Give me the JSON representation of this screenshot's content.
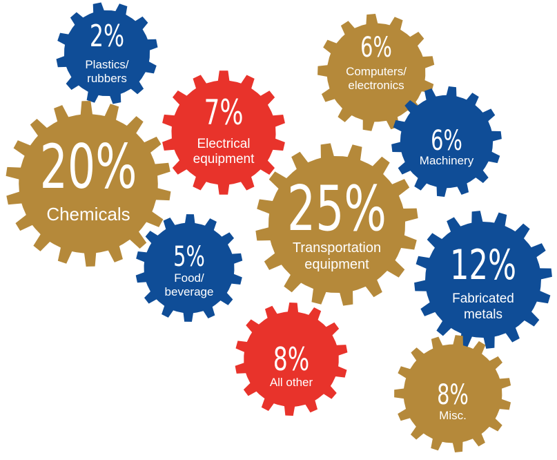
{
  "colors": {
    "gold": "#b5893a",
    "blue": "#0f4d97",
    "red": "#e8332b"
  },
  "chart_data": {
    "type": "pie",
    "title": "",
    "unit": "%",
    "categories": [
      {
        "percent_label": "2%",
        "value": 2,
        "label_lines": [
          "Plastics/",
          "rubbers"
        ],
        "color": "blue"
      },
      {
        "percent_label": "6%",
        "value": 6,
        "label_lines": [
          "Computers/",
          "electronics"
        ],
        "color": "gold"
      },
      {
        "percent_label": "7%",
        "value": 7,
        "label_lines": [
          "Electrical",
          "equipment"
        ],
        "color": "red"
      },
      {
        "percent_label": "6%",
        "value": 6,
        "label_lines": [
          "Machinery"
        ],
        "color": "blue"
      },
      {
        "percent_label": "20%",
        "value": 20,
        "label_lines": [
          "Chemicals"
        ],
        "color": "gold"
      },
      {
        "percent_label": "25%",
        "value": 25,
        "label_lines": [
          "Transportation",
          "equipment"
        ],
        "color": "gold"
      },
      {
        "percent_label": "5%",
        "value": 5,
        "label_lines": [
          "Food/",
          "beverage"
        ],
        "color": "blue"
      },
      {
        "percent_label": "12%",
        "value": 12,
        "label_lines": [
          "Fabricated",
          "metals"
        ],
        "color": "blue"
      },
      {
        "percent_label": "8%",
        "value": 8,
        "label_lines": [
          "All other"
        ],
        "color": "red"
      },
      {
        "percent_label": "8%",
        "value": 8,
        "label_lines": [
          "Misc."
        ],
        "color": "gold"
      }
    ]
  }
}
